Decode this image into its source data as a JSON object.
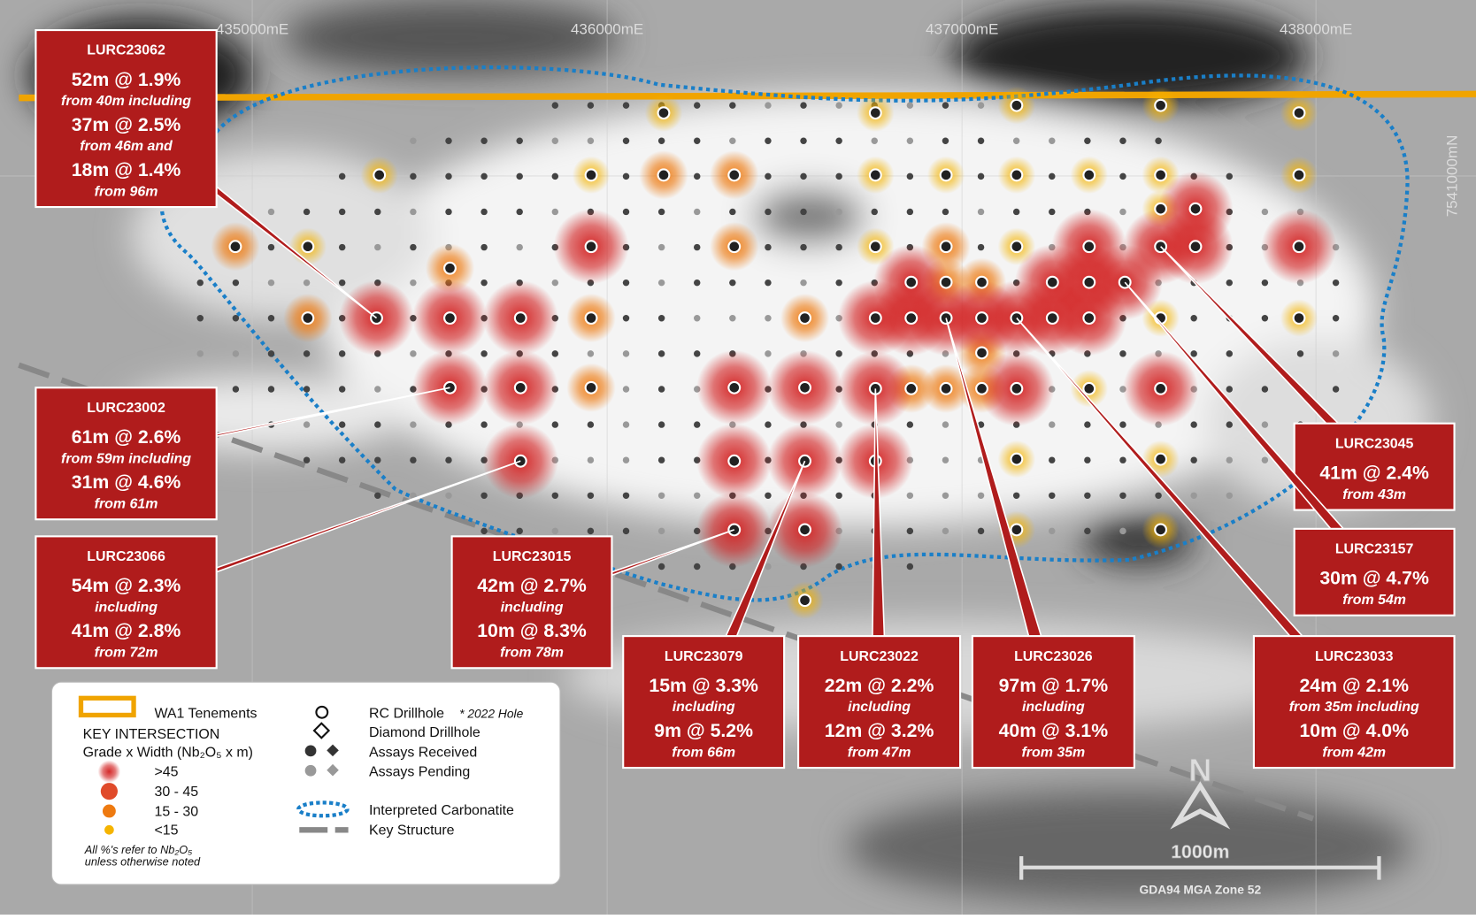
{
  "map": {
    "grid_labels_e": [
      "435000mE",
      "436000mE",
      "437000mE",
      "438000mE"
    ],
    "grid_label_n": "7541000mN",
    "callouts": [
      {
        "id": "LURC23062",
        "lines": [
          "52m @ 1.9%",
          "from 40m including",
          "37m @ 2.5%",
          "from 46m and",
          "18m @ 1.4%",
          "from 96m"
        ]
      },
      {
        "id": "LURC23002",
        "lines": [
          "61m @ 2.6%",
          "from 59m including",
          "31m @ 4.6%",
          "from 61m"
        ]
      },
      {
        "id": "LURC23066",
        "lines": [
          "54m @ 2.3%",
          "including",
          "41m @ 2.8%",
          "from 72m"
        ]
      },
      {
        "id": "LURC23015",
        "lines": [
          "42m @ 2.7%",
          "including",
          "10m @ 8.3%",
          "from 78m"
        ]
      },
      {
        "id": "LURC23079",
        "lines": [
          "15m @ 3.3%",
          "including",
          "9m @ 5.2%",
          "from 66m"
        ]
      },
      {
        "id": "LURC23022",
        "lines": [
          "22m @ 2.2%",
          "including",
          "12m @ 3.2%",
          "from 47m"
        ]
      },
      {
        "id": "LURC23026",
        "lines": [
          "97m @ 1.7%",
          "including",
          "40m @ 3.1%",
          "from 35m"
        ]
      },
      {
        "id": "LURC23033",
        "lines": [
          "24m @ 2.1%",
          "from 35m including",
          "10m @ 4.0%",
          "from 42m"
        ]
      },
      {
        "id": "LURC23045",
        "lines": [
          "41m @ 2.4%",
          "from 43m"
        ]
      },
      {
        "id": "LURC23157",
        "lines": [
          "30m @ 4.7%",
          "from 54m"
        ]
      }
    ],
    "legend": {
      "tenements": "WA1 Tenements",
      "key_intersection": "KEY INTERSECTION",
      "grade_label": "Grade x Width (Nb₂O₅ x m)",
      "grades": [
        ">45",
        "30 - 45",
        "15 - 30",
        "<15"
      ],
      "note": [
        "All %'s refer to Nb₂O₅",
        "unless otherwise noted"
      ],
      "rc": "RC Drillhole",
      "hole_2022": "* 2022 Hole",
      "diamond": "Diamond Drillhole",
      "received": "Assays Received",
      "pending": "Assays Pending",
      "carbonatite": "Interpreted Carbonatite",
      "structure": "Key Structure"
    },
    "north": "N",
    "scale": {
      "label": "1000m",
      "datum": "GDA94 MGA Zone 52"
    }
  }
}
